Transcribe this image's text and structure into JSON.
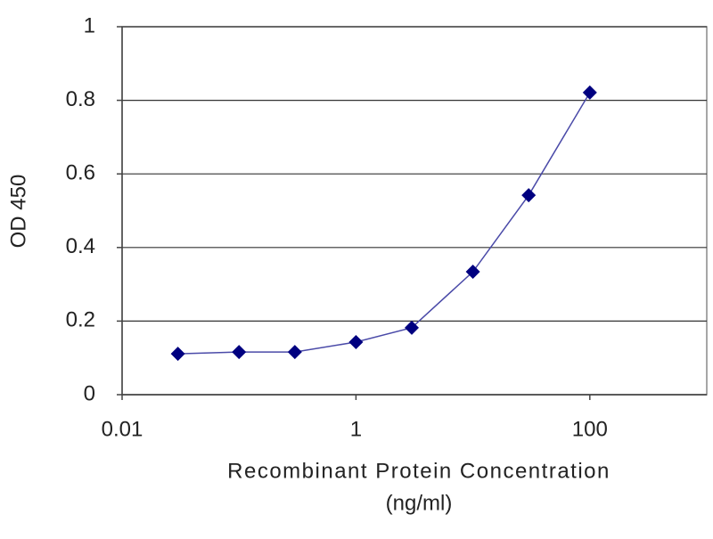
{
  "chart_data": {
    "type": "line",
    "y_label": "OD 450",
    "x_label": [
      "Recombinant Protein Concentration",
      "(ng/ml)"
    ],
    "x": [
      0.03,
      0.1,
      0.3,
      1,
      3,
      10,
      30,
      100
    ],
    "series": [
      {
        "color": "#000080",
        "line_color": "#4a4aa8",
        "values": [
          0.111,
          0.116,
          0.116,
          0.143,
          0.182,
          0.334,
          0.542,
          0.821
        ]
      }
    ],
    "xlog": true,
    "xlim": [
      0.01,
      1000
    ],
    "xticks": [
      0.01,
      1,
      100
    ],
    "ylim": [
      0,
      1
    ],
    "yticks": [
      0,
      0.2,
      0.4,
      0.6,
      0.8,
      1
    ],
    "grid": true
  }
}
